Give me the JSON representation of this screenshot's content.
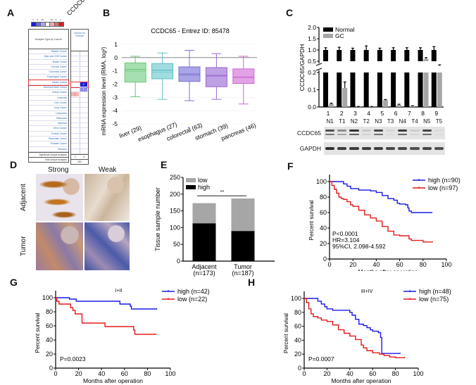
{
  "panels": {
    "A": {
      "label": "A",
      "gene_header": "CCDC65",
      "legend_ticks": [
        "1",
        "5",
        "10",
        "",
        "10",
        "5",
        "1"
      ],
      "legend_colors": [
        "#1f1fd6",
        "#6a6ae6",
        "#a9a9ee",
        "#ffffff",
        "#f0a9a9",
        "#e66a6a",
        "#d61f1f"
      ],
      "table_header": "Analysis Type by Cancer",
      "column_header": "Cancer vs. Normal",
      "cancer_types": [
        "Bladder Cancer",
        "Brain and CNS Cancer",
        "Breast Cancer",
        "Cervical Cancer",
        "Colorectal Cancer",
        "Esophageal Cancer",
        "Gastric Cancer",
        "Head and Neck Cancer",
        "Kidney Cancer",
        "Leukemia",
        "Liver Cancer",
        "Lung Cancer",
        "Lymphoma",
        "Melanoma",
        "Myeloma",
        "Other Cancer",
        "Ovarian Cancer",
        "Pancreatic Cancer",
        "Prostate Cancer",
        "Sarcoma"
      ],
      "highlighted_row": "Gastric Cancer",
      "cells": [
        {
          "cancer": "Gastric Cancer",
          "side": "under",
          "value": "2",
          "color": "#1f1fd6"
        },
        {
          "cancer": "Head and Neck Cancer",
          "side": "under",
          "value": "1",
          "color": "#8c8cea"
        },
        {
          "cancer": "Kidney Cancer",
          "side": "over",
          "value": "1",
          "color": "#f4b6b6"
        }
      ],
      "footer_rows": [
        {
          "label": "Significant Unique Analyses",
          "values": [
            "1",
            "3"
          ]
        },
        {
          "label": "Total Unique Analyses",
          "values": [
            "252"
          ]
        }
      ]
    },
    "D": {
      "label": "D",
      "col_labels": [
        "Strong",
        "Weak"
      ],
      "row_labels": [
        "Adjacent",
        "Tumor"
      ]
    }
  },
  "chart_data": [
    {
      "id": "B",
      "label": "B",
      "type": "box",
      "title": "CCDC65 - Entrez ID: 85478",
      "ylabel": "mRNA expression level (RMA, log²)",
      "xlabel": "",
      "ylim": [
        -5,
        1
      ],
      "yticks": [
        1,
        0,
        -1,
        -2,
        -3,
        -4,
        -5
      ],
      "categories": [
        "liver (29)",
        "esophagus (27)",
        "colorectal (63)",
        "stomach (39)",
        "pancreas (46)"
      ],
      "colors": [
        "#6cc77c",
        "#5dbfc4",
        "#7b73d1",
        "#9a6ad0",
        "#cc6ad2"
      ],
      "fills": [
        "#a6dfb0",
        "#a1dce0",
        "#a9a4e6",
        "#bea0e4",
        "#e2a3e6"
      ],
      "boxes": [
        {
          "whisker_high": 0.1,
          "q3": -0.4,
          "median": -0.9,
          "mean": -1.05,
          "q1": -1.85,
          "whisker_low": -2.95
        },
        {
          "whisker_high": 0.35,
          "q3": -0.45,
          "median": -0.95,
          "mean": -1.1,
          "q1": -1.6,
          "whisker_low": -3.15
        },
        {
          "whisker_high": 0.55,
          "q3": -0.7,
          "median": -1.25,
          "mean": -1.35,
          "q1": -1.8,
          "whisker_low": -3.25
        },
        {
          "whisker_high": 0.3,
          "q3": -0.75,
          "median": -1.35,
          "mean": -1.4,
          "q1": -2.2,
          "whisker_low": -3.15
        },
        {
          "whisker_high": 0.1,
          "q3": -0.85,
          "median": -1.5,
          "mean": -1.45,
          "q1": -1.95,
          "whisker_low": -3.5
        }
      ],
      "outliers": [
        {
          "category": "colorectal (63)",
          "y": -5.3
        }
      ],
      "reference_line": 0
    },
    {
      "id": "C",
      "label": "C",
      "type": "bar",
      "ylabel": "CCDC65/GAPDH",
      "categories": [
        "1",
        "2",
        "3",
        "4",
        "5",
        "6",
        "7",
        "8",
        "9"
      ],
      "series": [
        {
          "name": "Normal",
          "color": "#000000",
          "values": [
            1.0,
            1.0,
            1.0,
            1.0,
            1.0,
            1.0,
            1.0,
            1.0,
            1.0
          ],
          "errors": [
            0.1,
            0.12,
            0.08,
            0.18,
            0.08,
            0.1,
            0.1,
            0.1,
            0.15
          ]
        },
        {
          "name": "GC",
          "color": "#a6a6a6",
          "values": [
            0.018,
            0.11,
            0.002,
            0.002,
            0.04,
            0.012,
            0.005,
            0.6,
            0.3
          ],
          "errors": [
            0.004,
            0.035,
            0.001,
            0.001,
            0.003,
            0.004,
            0.002,
            0.06,
            0.04
          ]
        }
      ],
      "axis_break": true,
      "yticks_lower": [
        0.0,
        0.1,
        0.2
      ],
      "yticks_upper": [
        0.5,
        1.0,
        1.5,
        2.0
      ],
      "ytick_labels_lower": [
        "0.0",
        "0.1",
        "0.2"
      ],
      "ytick_labels_upper": [
        "0.5",
        "1.0",
        "1.5",
        "2.0"
      ],
      "legend": "top-left",
      "blot": {
        "lanes": [
          "N1",
          "T1",
          "N2",
          "T2",
          "N3",
          "T3",
          "N4",
          "T4",
          "N5",
          "T5"
        ],
        "rows": [
          "CCDC65",
          "GAPDH"
        ],
        "ccdc65_intensity": [
          0.75,
          0.45,
          0.9,
          0.15,
          0.8,
          0.08,
          0.85,
          0.12,
          0.8,
          0.06
        ],
        "gapdh_intensity": [
          0.9,
          0.85,
          0.85,
          0.85,
          0.85,
          0.8,
          0.8,
          0.75,
          0.8,
          0.75
        ]
      }
    },
    {
      "id": "E",
      "label": "E",
      "type": "bar",
      "stacked": true,
      "ylabel": "Tissue sample number",
      "categories": [
        "Adjacent\n(n=173)",
        "Tumor\n(n=187)"
      ],
      "category_lines": [
        [
          "Adjacent",
          "(n=173)"
        ],
        [
          "Tumor",
          "(n=187)"
        ]
      ],
      "series": [
        {
          "name": "high",
          "color": "#000000",
          "values": [
            113,
            90
          ]
        },
        {
          "name": "low",
          "color": "#a6a6a6",
          "values": [
            60,
            97
          ]
        }
      ],
      "ylim": [
        0,
        250
      ],
      "yticks": [
        0,
        50,
        100,
        150,
        200,
        250
      ],
      "significance": "**",
      "legend": "top-left"
    },
    {
      "id": "F",
      "label": "F",
      "type": "line",
      "subtitle": "",
      "xlabel": "Months after operation",
      "ylabel": "Percent survival",
      "xlim": [
        0,
        100
      ],
      "ylim": [
        0,
        100
      ],
      "xticks": [
        0,
        20,
        40,
        60,
        80,
        100
      ],
      "yticks": [
        0,
        20,
        40,
        60,
        80,
        100
      ],
      "legend": "top-right",
      "annotations": [
        "P<0.0001",
        "HR=3.104",
        "95%CI, 2.098-4.592"
      ],
      "series": [
        {
          "name": "high (n=90)",
          "color": "#1a1ae6",
          "x": [
            0,
            10,
            12,
            15,
            18,
            25,
            35,
            40,
            45,
            50,
            55,
            58,
            60,
            65,
            67,
            68,
            70,
            80,
            88
          ],
          "y": [
            100,
            100,
            97,
            94,
            91,
            89,
            88,
            86,
            82,
            78,
            76,
            72,
            71,
            70,
            66,
            62,
            60,
            60,
            60
          ]
        },
        {
          "name": "low (n=97)",
          "color": "#e61a1a",
          "x": [
            0,
            2,
            4,
            6,
            8,
            10,
            12,
            15,
            18,
            20,
            25,
            30,
            35,
            40,
            45,
            50,
            55,
            60,
            65,
            68,
            70,
            78,
            80,
            88
          ],
          "y": [
            100,
            95,
            90,
            85,
            80,
            78,
            77,
            74,
            70,
            68,
            63,
            57,
            53,
            49,
            42,
            36,
            31,
            30,
            30,
            26,
            24,
            24,
            22,
            23
          ]
        }
      ]
    },
    {
      "id": "G",
      "label": "G",
      "type": "line",
      "subtitle": "I+II",
      "xlabel": "Months after operation",
      "ylabel": "Percent survival",
      "xlim": [
        0,
        100
      ],
      "ylim": [
        0,
        100
      ],
      "xticks": [
        0,
        20,
        40,
        60,
        80,
        100
      ],
      "yticks": [
        0,
        20,
        40,
        60,
        80,
        100
      ],
      "legend": "top-right",
      "annotations": [
        "P=0.0023"
      ],
      "series": [
        {
          "name": "high (n=42)",
          "color": "#1a1ae6",
          "x": [
            0,
            11,
            12,
            17,
            18,
            55,
            56,
            62,
            65,
            66,
            68,
            88
          ],
          "y": [
            100,
            100,
            98,
            98,
            95,
            95,
            91,
            91,
            88,
            84,
            84,
            85
          ]
        },
        {
          "name": "low (n=22)",
          "color": "#e61a1a",
          "x": [
            0,
            1,
            2,
            3,
            12,
            13,
            15,
            17,
            22,
            23,
            42,
            43,
            67,
            68,
            69,
            88
          ],
          "y": [
            100,
            95,
            95,
            91,
            91,
            86,
            82,
            77,
            77,
            64,
            64,
            59,
            59,
            54,
            48,
            48
          ]
        }
      ]
    },
    {
      "id": "H",
      "label": "H",
      "type": "line",
      "subtitle": "III+IV",
      "xlabel": "Months after operation",
      "ylabel": "Percent survival",
      "xlim": [
        0,
        100
      ],
      "ylim": [
        0,
        100
      ],
      "xticks": [
        0,
        20,
        40,
        60,
        80,
        100
      ],
      "yticks": [
        0,
        20,
        40,
        60,
        80,
        100
      ],
      "legend": "top-right",
      "annotations": [
        "P=0.0007"
      ],
      "series": [
        {
          "name": "high (n=48)",
          "color": "#1a1ae6",
          "x": [
            0,
            10,
            12,
            15,
            18,
            20,
            25,
            35,
            40,
            42,
            45,
            48,
            52,
            55,
            58,
            60,
            65,
            67,
            68,
            84
          ],
          "y": [
            100,
            100,
            96,
            92,
            88,
            85,
            83,
            83,
            80,
            76,
            70,
            63,
            61,
            58,
            55,
            53,
            51,
            44,
            21,
            22
          ]
        },
        {
          "name": "low (n=75)",
          "color": "#e61a1a",
          "x": [
            0,
            2,
            4,
            6,
            8,
            12,
            15,
            20,
            25,
            30,
            35,
            40,
            45,
            50,
            52,
            55,
            60,
            65,
            66,
            70,
            75,
            80,
            88
          ],
          "y": [
            100,
            94,
            85,
            78,
            74,
            72,
            69,
            67,
            62,
            55,
            50,
            46,
            41,
            33,
            29,
            25,
            22,
            22,
            20,
            18,
            16,
            15,
            16
          ]
        }
      ]
    }
  ]
}
